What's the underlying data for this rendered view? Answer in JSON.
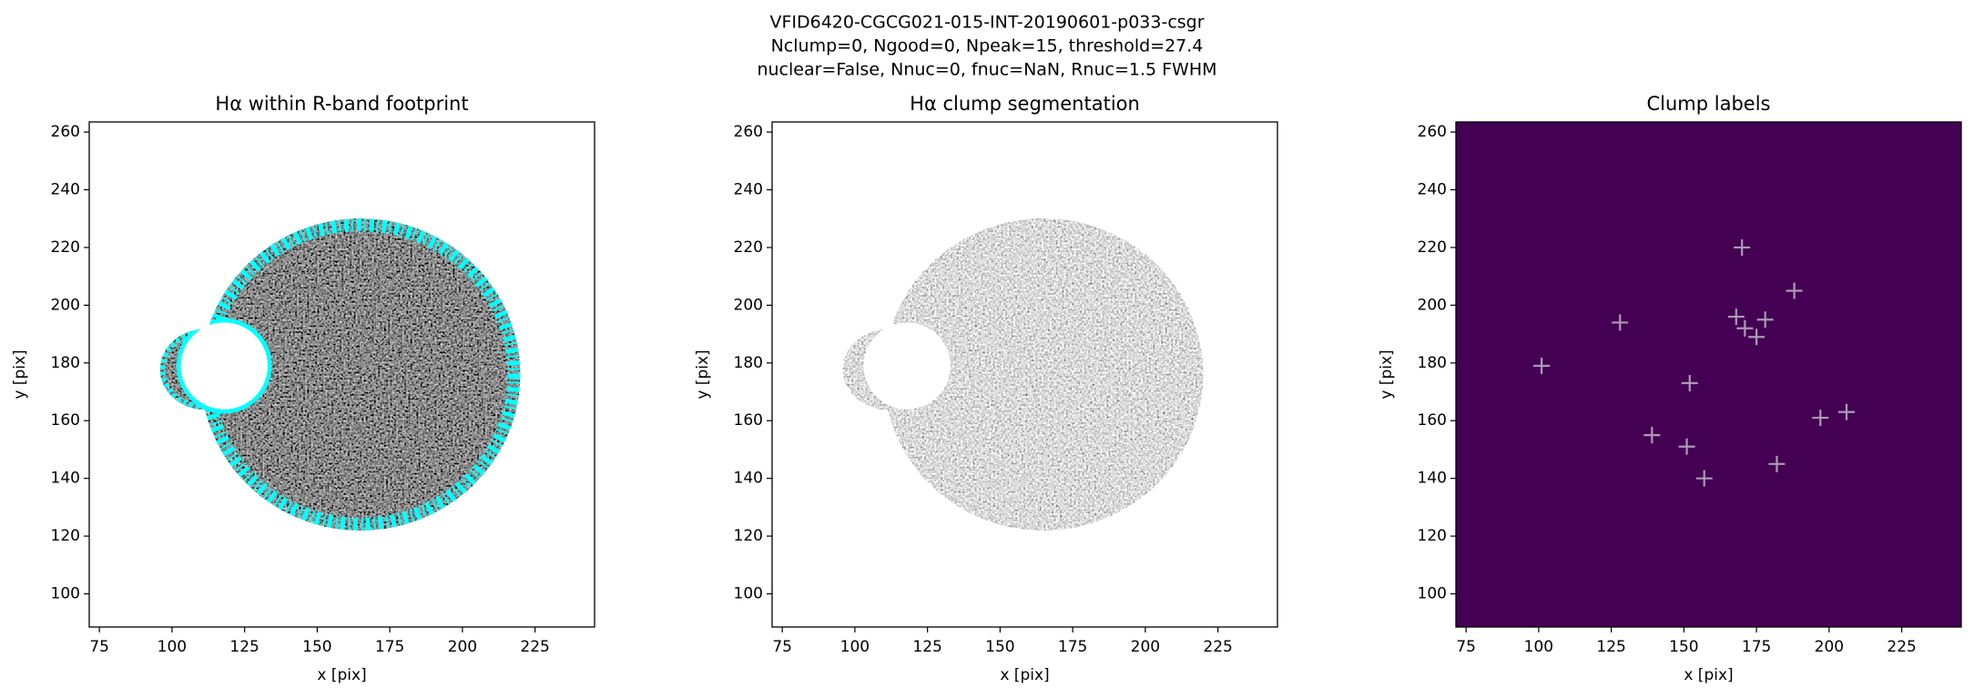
{
  "figure": {
    "suptitle": [
      "VFID6420-CGCG021-015-INT-20190601-p033-csgr",
      "Nclump=0, Ngood=0, Npeak=15, threshold=27.4",
      "nuclear=False, Nnuc=0, fnuc=NaN, Rnuc=1.5 FWHM"
    ]
  },
  "chart_data": [
    {
      "type": "image",
      "title": "Hα within R-band footprint",
      "xlabel": "x [pix]",
      "ylabel": "y [pix]",
      "xlim": [
        71.5,
        245.5
      ],
      "ylim": [
        88.5,
        263.5
      ],
      "xticks": [
        75,
        100,
        125,
        150,
        175,
        200,
        225
      ],
      "yticks": [
        100,
        120,
        140,
        160,
        180,
        200,
        220,
        240,
        260
      ]
    },
    {
      "type": "image",
      "title": "Hα clump segmentation",
      "xlabel": "x [pix]",
      "ylabel": "y [pix]",
      "xlim": [
        71.5,
        245.5
      ],
      "ylim": [
        88.5,
        263.5
      ],
      "xticks": [
        75,
        100,
        125,
        150,
        175,
        200,
        225
      ],
      "yticks": [
        100,
        120,
        140,
        160,
        180,
        200,
        220,
        240,
        260
      ]
    },
    {
      "type": "scatter",
      "title": "Clump labels",
      "xlabel": "x [pix]",
      "ylabel": "y [pix]",
      "xlim": [
        71.5,
        245.5
      ],
      "ylim": [
        88.5,
        263.5
      ],
      "xticks": [
        75,
        100,
        125,
        150,
        175,
        200,
        225
      ],
      "yticks": [
        100,
        120,
        140,
        160,
        180,
        200,
        220,
        240,
        260
      ],
      "background": "#440154",
      "color": "#a99bb3",
      "x": [
        170,
        188,
        128,
        168,
        171,
        178,
        175,
        101,
        152,
        139,
        151,
        197,
        206,
        182,
        157
      ],
      "y": [
        220,
        205,
        194,
        196,
        192,
        195,
        189,
        179,
        173,
        155,
        151,
        161,
        163,
        145,
        140
      ]
    }
  ]
}
